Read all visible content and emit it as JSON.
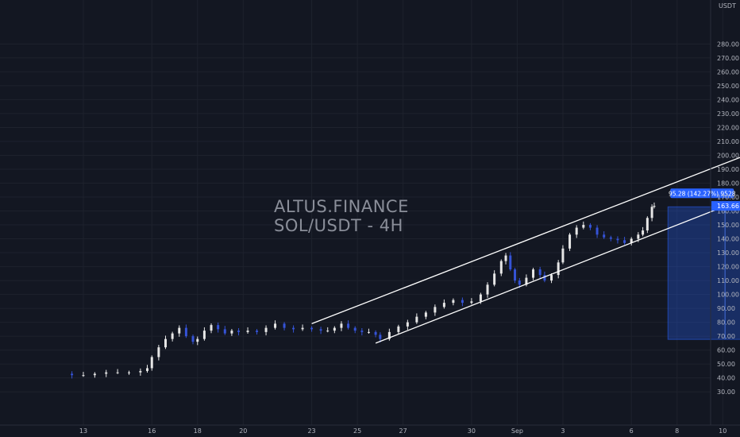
{
  "watermark": {
    "line1": "ALTUS.FINANCE",
    "line2": "SOL/USDT - 4H"
  },
  "price_axis": {
    "currency": "USDT",
    "ticks": [
      "280.00",
      "270.00",
      "260.00",
      "250.00",
      "240.00",
      "230.00",
      "220.00",
      "210.00",
      "200.00",
      "190.00",
      "180.00",
      "170.00",
      "160.00",
      "150.00",
      "140.00",
      "130.00",
      "120.00",
      "110.00",
      "100.00",
      "90.00",
      "80.00",
      "70.00",
      "60.00",
      "50.00",
      "40.00",
      "30.00"
    ],
    "last_price": "163.66"
  },
  "time_axis": {
    "ticks": [
      {
        "label": "13",
        "day": 13
      },
      {
        "label": "16",
        "day": 16
      },
      {
        "label": "18",
        "day": 18
      },
      {
        "label": "20",
        "day": 20
      },
      {
        "label": "23",
        "day": 23
      },
      {
        "label": "25",
        "day": 25
      },
      {
        "label": "27",
        "day": 27
      },
      {
        "label": "30",
        "day": 30
      },
      {
        "label": "Sep",
        "day": 32
      },
      {
        "label": "3",
        "day": 34
      },
      {
        "label": "6",
        "day": 37
      },
      {
        "label": "8",
        "day": 39
      },
      {
        "label": "10",
        "day": 41
      }
    ]
  },
  "measure": {
    "label": "95.28 (142.27%) 9528"
  },
  "colors": {
    "background": "#131722",
    "up": "#e6e6e6",
    "down": "#3553d6",
    "grid": "#1e222d",
    "accent": "#2962ff"
  },
  "chart_data": {
    "type": "candlestick",
    "symbol": "SOL/USDT",
    "timeframe": "4H",
    "x_unit": "day of month (August; 32 = Sep 1)",
    "ylim": [
      25,
      285
    ],
    "grid": true,
    "price_series": [
      [
        12.0,
        43
      ],
      [
        12.5,
        42
      ],
      [
        13.0,
        42
      ],
      [
        13.5,
        43
      ],
      [
        14.0,
        44
      ],
      [
        14.5,
        44
      ],
      [
        15.0,
        44
      ],
      [
        15.5,
        45
      ],
      [
        15.8,
        47
      ],
      [
        16.0,
        55
      ],
      [
        16.3,
        62
      ],
      [
        16.6,
        68
      ],
      [
        16.9,
        72
      ],
      [
        17.2,
        76
      ],
      [
        17.5,
        70
      ],
      [
        17.8,
        66
      ],
      [
        18.0,
        68
      ],
      [
        18.3,
        74
      ],
      [
        18.6,
        78
      ],
      [
        18.9,
        75
      ],
      [
        19.2,
        72
      ],
      [
        19.5,
        74
      ],
      [
        19.8,
        73
      ],
      [
        20.2,
        74
      ],
      [
        20.6,
        73
      ],
      [
        21.0,
        76
      ],
      [
        21.4,
        79
      ],
      [
        21.8,
        76
      ],
      [
        22.2,
        75
      ],
      [
        22.6,
        76
      ],
      [
        23.0,
        75
      ],
      [
        23.4,
        74
      ],
      [
        23.7,
        74
      ],
      [
        24.0,
        76
      ],
      [
        24.3,
        79
      ],
      [
        24.6,
        76
      ],
      [
        24.9,
        74
      ],
      [
        25.2,
        73
      ],
      [
        25.5,
        73
      ],
      [
        25.8,
        71
      ],
      [
        26.0,
        68
      ],
      [
        26.4,
        73
      ],
      [
        26.8,
        77
      ],
      [
        27.2,
        80
      ],
      [
        27.6,
        84
      ],
      [
        28.0,
        87
      ],
      [
        28.4,
        91
      ],
      [
        28.8,
        94
      ],
      [
        29.2,
        96
      ],
      [
        29.6,
        94
      ],
      [
        30.0,
        95
      ],
      [
        30.4,
        100
      ],
      [
        30.7,
        107
      ],
      [
        31.0,
        115
      ],
      [
        31.3,
        124
      ],
      [
        31.5,
        128
      ],
      [
        31.7,
        118
      ],
      [
        31.9,
        110
      ],
      [
        32.1,
        107
      ],
      [
        32.4,
        112
      ],
      [
        32.7,
        118
      ],
      [
        33.0,
        114
      ],
      [
        33.2,
        110
      ],
      [
        33.5,
        114
      ],
      [
        33.8,
        123
      ],
      [
        34.0,
        133
      ],
      [
        34.3,
        143
      ],
      [
        34.6,
        148
      ],
      [
        34.9,
        150
      ],
      [
        35.2,
        148
      ],
      [
        35.5,
        143
      ],
      [
        35.8,
        141
      ],
      [
        36.1,
        140
      ],
      [
        36.4,
        139
      ],
      [
        36.7,
        137
      ],
      [
        37.0,
        140
      ],
      [
        37.3,
        143
      ],
      [
        37.5,
        146
      ],
      [
        37.7,
        155
      ],
      [
        37.9,
        163
      ],
      [
        38.0,
        163.66
      ]
    ],
    "annotations": {
      "channel_upper": [
        [
          23.0,
          79
        ],
        [
          37.5,
          163
        ],
        [
          42.0,
          200
        ]
      ],
      "channel_lower": [
        [
          25.8,
          65
        ],
        [
          37.5,
          141
        ],
        [
          41.5,
          166
        ]
      ],
      "measure_box": {
        "x_start": 38.6,
        "x_end": 42.7,
        "y_top": 163,
        "y_bottom": 67.7,
        "x_mid": 41.1
      }
    }
  }
}
